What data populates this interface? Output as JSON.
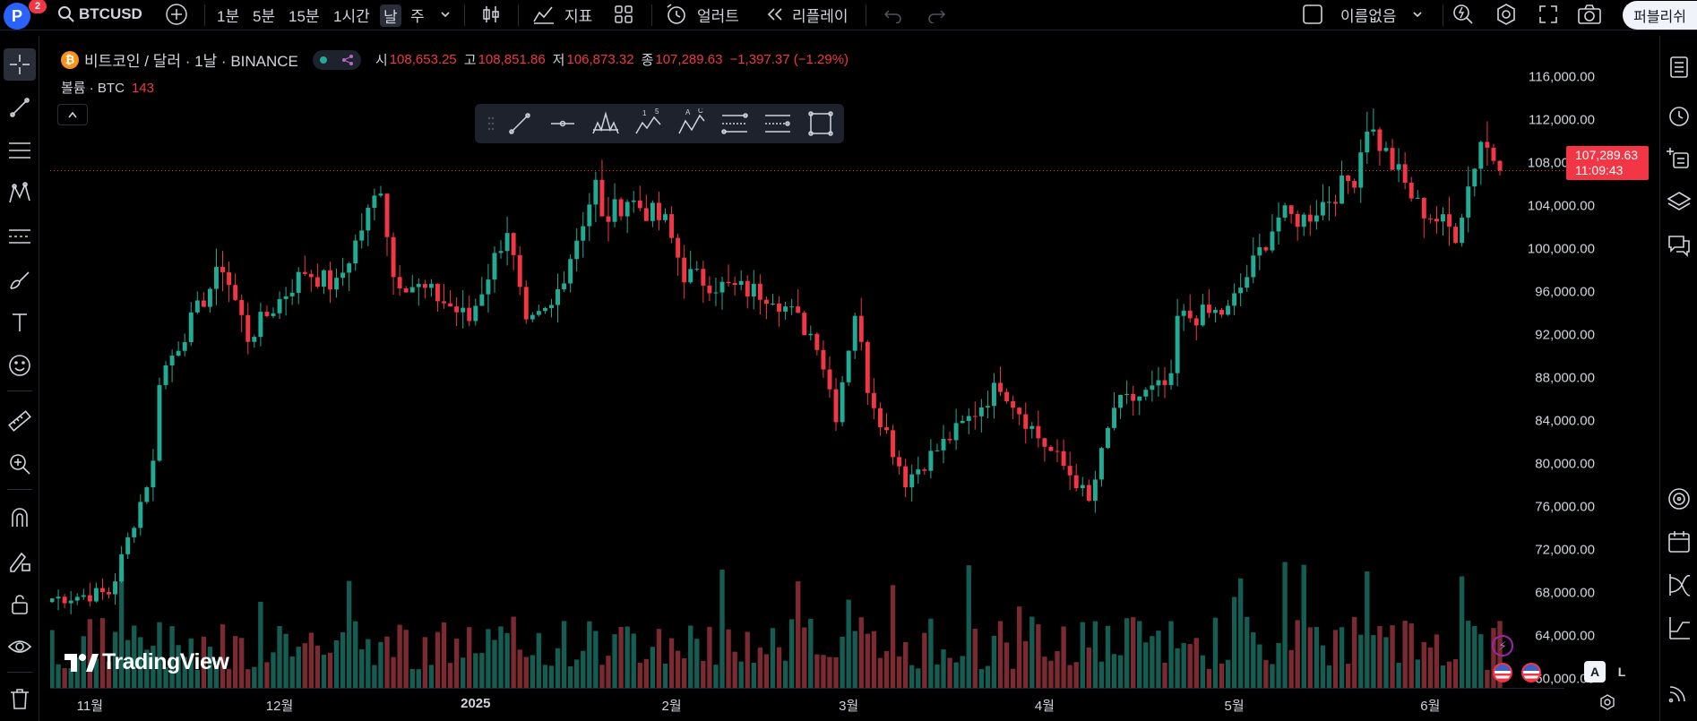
{
  "topbar": {
    "avatar_letter": "P",
    "notification_count": "2",
    "symbol": "BTCUSD",
    "intervals": [
      "1분",
      "5분",
      "15분",
      "1시간",
      "날",
      "주"
    ],
    "active_interval": "날",
    "indicators_label": "지표",
    "alert_label": "얼러트",
    "replay_label": "리플레이",
    "layout_name": "이름없음",
    "share_label": "퍼블리쉬"
  },
  "legend": {
    "coin_symbol": "₿",
    "title": "비트코인 / 달러 · 1날 · BINANCE",
    "open_label": "시",
    "open_value": "108,653.25",
    "high_label": "고",
    "high_value": "108,851.86",
    "low_label": "저",
    "low_value": "106,873.32",
    "close_label": "종",
    "close_value": "107,289.63",
    "change": "−1,397.37 (−1.29%)",
    "volume_label": "볼륨 · BTC",
    "volume_value": "143",
    "collapse_icon": "^"
  },
  "price_axis": {
    "labels": [
      "116,000.00",
      "112,000.00",
      "108,000.00",
      "104,000.00",
      "100,000.00",
      "96,000.00",
      "92,000.00",
      "88,000.00",
      "84,000.00",
      "80,000.00",
      "76,000.00",
      "72,000.00",
      "68,000.00",
      "64,000.00",
      "60,000.00"
    ],
    "last_price": "107,289.63",
    "countdown": "11:09:43"
  },
  "time_axis": {
    "labels": [
      "11월",
      "12월",
      "2025",
      "2월",
      "3월",
      "4월",
      "5월",
      "6월"
    ]
  },
  "logo_text": "TradingView",
  "scale_buttons": [
    "A",
    "L"
  ],
  "colors": {
    "up": "#22ab94",
    "down": "#f23645",
    "up_volume": "#155d52",
    "down_volume": "#7a2a30",
    "background": "#000000"
  },
  "chart_data": {
    "type": "candlestick",
    "title": "비트코인 / 달러 · 1날 · BINANCE",
    "ylim": [
      60000,
      118000
    ],
    "x_labels": [
      "11월",
      "12월",
      "2025",
      "2월",
      "3월",
      "4월",
      "5월",
      "6월"
    ],
    "last_price": 107289.63,
    "anchors": [
      [
        "10-26",
        67500
      ],
      [
        "11-04",
        68000
      ],
      [
        "11-05",
        69400
      ],
      [
        "11-11",
        80000
      ],
      [
        "11-12",
        88000
      ],
      [
        "11-22",
        98500
      ],
      [
        "11-26",
        91800
      ],
      [
        "12-05",
        98000
      ],
      [
        "12-10",
        96500
      ],
      [
        "12-17",
        106000
      ],
      [
        "12-19",
        97500
      ],
      [
        "12-26",
        95500
      ],
      [
        "12-31",
        93400
      ],
      [
        "01-06",
        102000
      ],
      [
        "01-09",
        92500
      ],
      [
        "01-13",
        94500
      ],
      [
        "01-20",
        106000
      ],
      [
        "01-21",
        102500
      ],
      [
        "01-25",
        104700
      ],
      [
        "01-31",
        102400
      ],
      [
        "02-03",
        97700
      ],
      [
        "02-09",
        96500
      ],
      [
        "02-17",
        95800
      ],
      [
        "02-24",
        91500
      ],
      [
        "02-27",
        84700
      ],
      [
        "03-02",
        94200
      ],
      [
        "03-04",
        87300
      ],
      [
        "03-10",
        78500
      ],
      [
        "03-20",
        84200
      ],
      [
        "03-25",
        87500
      ],
      [
        "03-31",
        82500
      ],
      [
        "04-06",
        78400
      ],
      [
        "04-08",
        76300
      ],
      [
        "04-12",
        85300
      ],
      [
        "04-21",
        87500
      ],
      [
        "04-22",
        93500
      ],
      [
        "04-30",
        94200
      ],
      [
        "05-08",
        103000
      ],
      [
        "05-12",
        102800
      ],
      [
        "05-20",
        106800
      ],
      [
        "05-22",
        111700
      ],
      [
        "05-30",
        104000
      ],
      [
        "06-05",
        101500
      ],
      [
        "06-09",
        110200
      ],
      [
        "06-11",
        108600
      ],
      [
        "06-12",
        107290
      ]
    ]
  }
}
